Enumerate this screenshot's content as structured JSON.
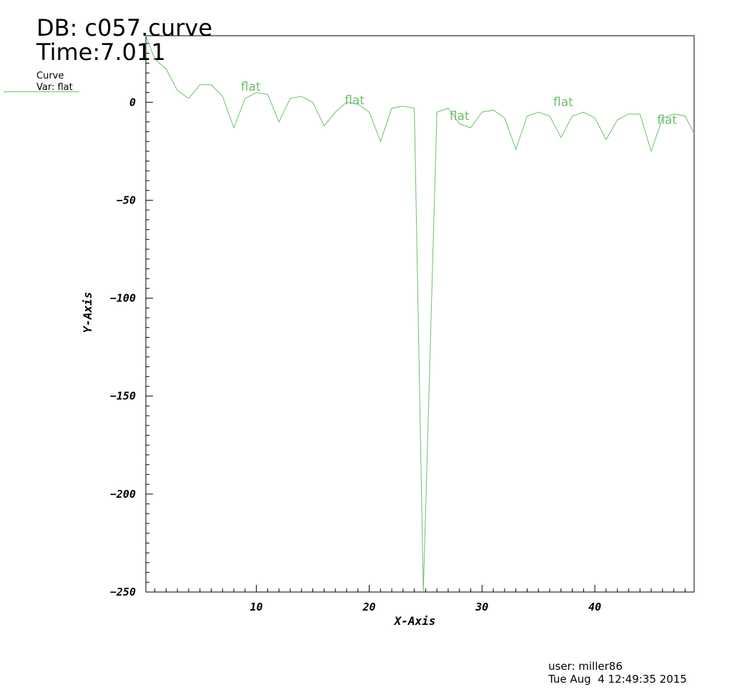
{
  "header": {
    "db_title": "DB: c057.curve",
    "time_label": "Time:7.011"
  },
  "legend": {
    "title": "Curve",
    "var_label": "Var: flat"
  },
  "footer": {
    "user": "user: miller86",
    "date": "Tue Aug  4 12:49:35 2015"
  },
  "colors": {
    "curve": "#6cc06c",
    "axis": "#000000"
  },
  "chart_data": {
    "type": "line",
    "xlabel": "X-Axis",
    "ylabel": "Y-Axis",
    "xlim": [
      0.2,
      48.8
    ],
    "ylim": [
      -250,
      34
    ],
    "x_ticks": [
      10,
      20,
      30,
      40
    ],
    "y_ticks": [
      0,
      -50,
      -100,
      -150,
      -200,
      -250
    ],
    "x_minor_step": 1,
    "y_minor_step": 5,
    "grid": false,
    "legend_position": "top-left",
    "series": [
      {
        "name": "flat",
        "x": [
          0.2,
          1,
          2,
          3,
          4,
          5,
          6,
          7,
          8,
          9,
          10,
          11,
          12,
          13,
          14,
          15,
          16,
          17,
          18,
          19,
          20,
          21,
          22,
          23,
          24,
          24.8,
          26,
          27,
          28,
          29,
          30,
          31,
          32,
          33,
          34,
          35,
          36,
          37,
          38,
          39,
          40,
          41,
          42,
          43,
          44,
          45,
          46,
          47,
          48,
          48.8
        ],
        "y": [
          34,
          22,
          17,
          6,
          2,
          9,
          9,
          3,
          -13,
          2,
          5,
          4,
          -10,
          2,
          3,
          0,
          -12,
          -5,
          0,
          -1,
          -5,
          -20,
          -3,
          -2,
          -3,
          -250,
          -5,
          -3,
          -11,
          -13,
          -5,
          -4,
          -8,
          -24,
          -7,
          -5,
          -7,
          -18,
          -7,
          -5,
          -8,
          -19,
          -9,
          -6,
          -6,
          -25,
          -8,
          -6,
          -7,
          -16
        ]
      }
    ],
    "annotations": [
      {
        "text": "flat",
        "x": 9.5,
        "y": 6
      },
      {
        "text": "flat",
        "x": 18.7,
        "y": -1
      },
      {
        "text": "flat",
        "x": 28,
        "y": -9
      },
      {
        "text": "flat",
        "x": 37.2,
        "y": -2
      },
      {
        "text": "flat",
        "x": 46.4,
        "y": -11
      }
    ]
  }
}
